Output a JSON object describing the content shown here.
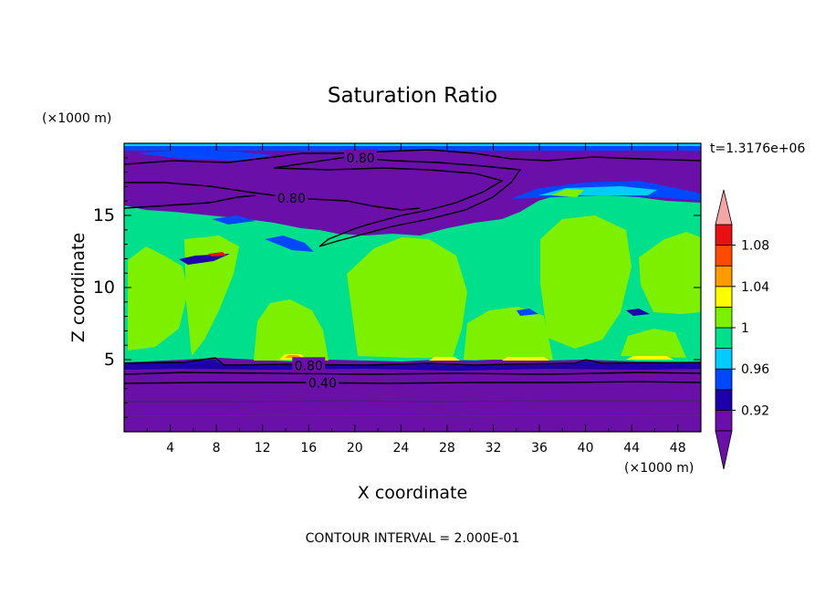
{
  "chart_data": {
    "type": "heatmap",
    "title": "Saturation Ratio",
    "xlabel": "X coordinate",
    "ylabel": "Z coordinate",
    "x_unit": "(×1000 m)",
    "y_unit": "(×1000 m)",
    "time_label": "t=1.3176e+06",
    "footer": "CONTOUR INTERVAL = 2.000E-01",
    "xlim": [
      0,
      50
    ],
    "ylim": [
      0,
      20
    ],
    "x_ticks": [
      "4",
      "8",
      "12",
      "16",
      "20",
      "24",
      "28",
      "32",
      "36",
      "40",
      "44",
      "48"
    ],
    "y_ticks": [
      "5",
      "10",
      "15"
    ],
    "contour_labels": [
      {
        "text": "0.80",
        "x": 20.5,
        "z": 19.0
      },
      {
        "text": "0.80",
        "x": 14.5,
        "z": 16.2
      },
      {
        "text": "0.80",
        "x": 16.0,
        "z": 4.6
      },
      {
        "text": "0.40",
        "x": 17.2,
        "z": 3.4
      }
    ],
    "colorbar": {
      "levels": [
        0.9,
        0.92,
        0.94,
        0.96,
        0.98,
        1.0,
        1.02,
        1.04,
        1.06,
        1.08,
        1.1
      ],
      "labels": [
        "0.92",
        "0.96",
        "1",
        "1.04",
        "1.08"
      ],
      "label_values": [
        0.92,
        0.96,
        1.0,
        1.04,
        1.08
      ],
      "colors": [
        "#6a0fa8",
        "#1c00a8",
        "#0048ff",
        "#00ccff",
        "#00e08c",
        "#7df000",
        "#ffff00",
        "#ff9a00",
        "#ff4a00",
        "#e81010"
      ],
      "under_color": "#6a0fa8",
      "over_color": "#f4a6a6"
    },
    "regions": {
      "lower_dry_layer": {
        "z_range": [
          0,
          5
        ],
        "value": "below 0.90"
      },
      "middle_layer": {
        "z_range": [
          5,
          15
        ],
        "dominant_values": [
          "0.98–1.00",
          "1.00–1.02"
        ]
      },
      "upper_dry_layer": {
        "z_range": [
          15,
          20
        ],
        "value": "below 0.90"
      }
    }
  }
}
